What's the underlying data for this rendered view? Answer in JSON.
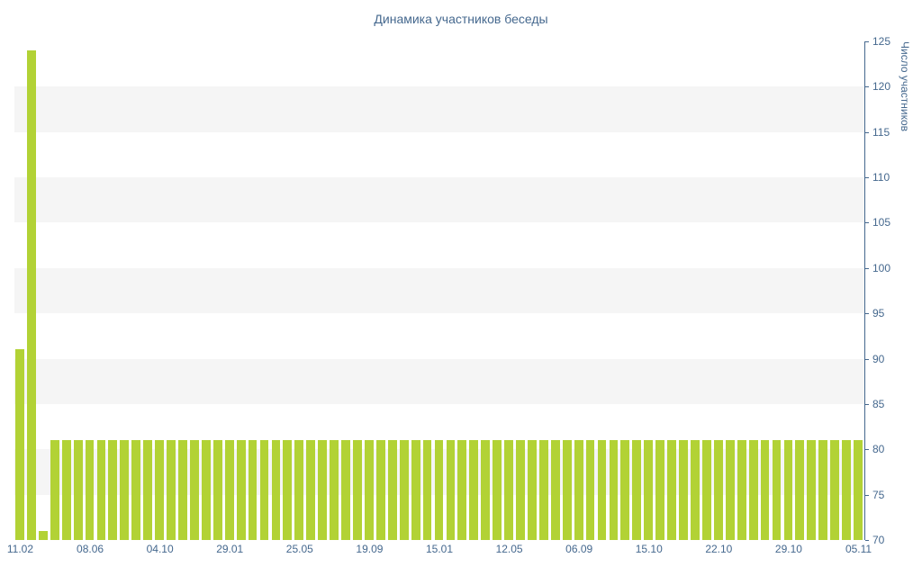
{
  "title": "Динамика участников беседы",
  "chart_data": {
    "type": "bar",
    "title": "Динамика участников беседы",
    "xlabel": "",
    "ylabel": "Число участников",
    "ylim": [
      70,
      125
    ],
    "y_ticks": [
      70,
      75,
      80,
      85,
      90,
      95,
      100,
      105,
      110,
      115,
      120,
      125
    ],
    "x_tick_labels": [
      "11.02",
      "08.06",
      "04.10",
      "29.01",
      "25.05",
      "19.09",
      "15.01",
      "12.05",
      "06.09",
      "15.10",
      "22.10",
      "29.10",
      "05.11"
    ],
    "x_tick_every": 6,
    "values": [
      91,
      124,
      71,
      81,
      81,
      81,
      81,
      81,
      81,
      81,
      81,
      81,
      81,
      81,
      81,
      81,
      81,
      81,
      81,
      81,
      81,
      81,
      81,
      81,
      81,
      81,
      81,
      81,
      81,
      81,
      81,
      81,
      81,
      81,
      81,
      81,
      81,
      81,
      81,
      81,
      81,
      81,
      81,
      81,
      81,
      81,
      81,
      81,
      81,
      81,
      81,
      81,
      81,
      81,
      81,
      81,
      81,
      81,
      81,
      81,
      81,
      81,
      81,
      81,
      81,
      81,
      81,
      81,
      81,
      81,
      81,
      81,
      81
    ],
    "grid": "horizontal-bands",
    "bands": [
      [
        75,
        80
      ],
      [
        85,
        90
      ],
      [
        95,
        100
      ],
      [
        105,
        110
      ],
      [
        115,
        120
      ]
    ],
    "legend_position": "none",
    "bar_color": "#b2d235",
    "band_color": "#f5f5f5",
    "axis_color": "#45688e"
  }
}
